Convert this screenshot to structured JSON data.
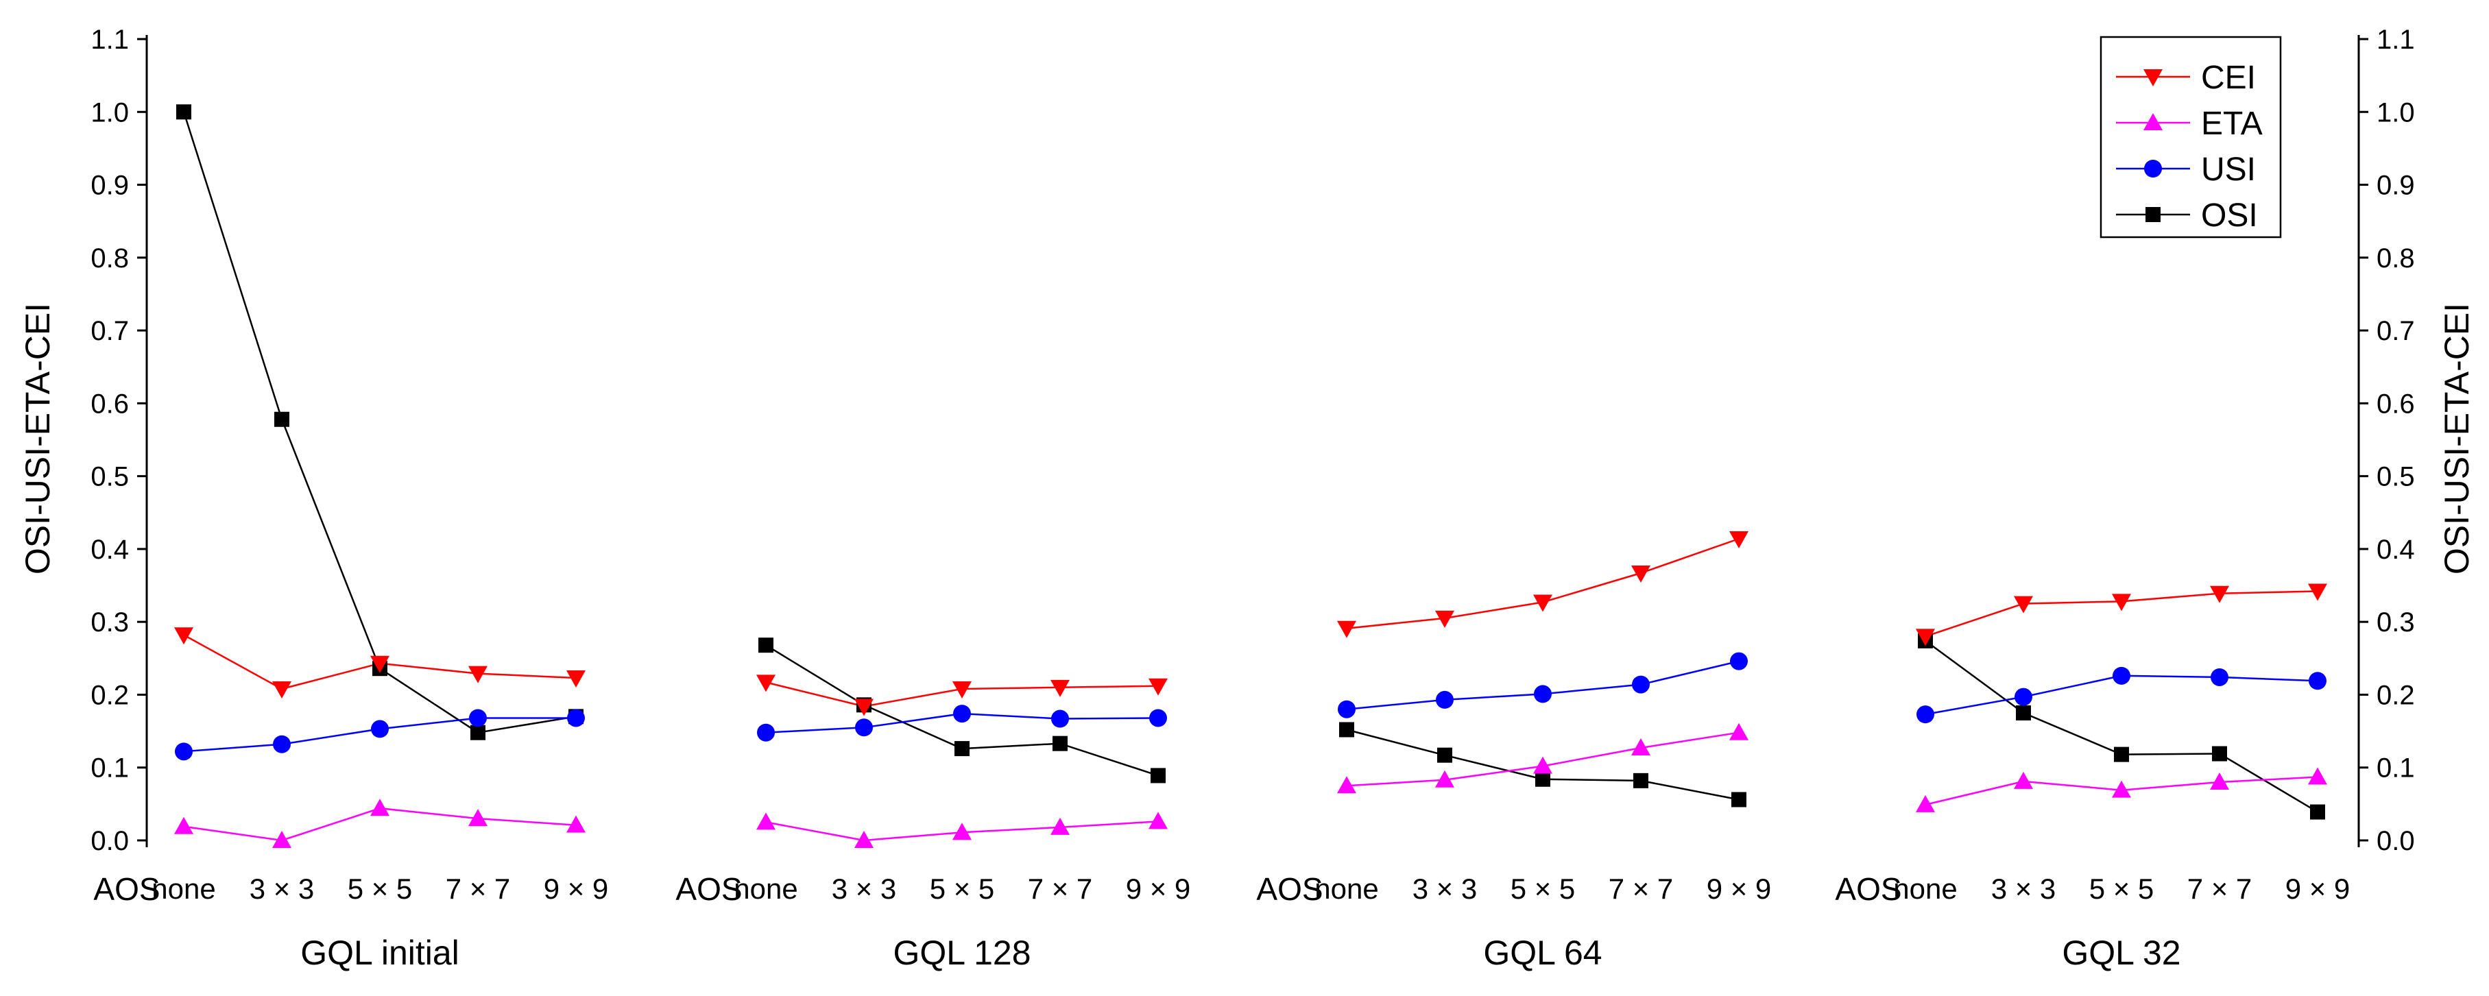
{
  "chart_data": {
    "type": "line",
    "ylabel_left": "OSI-USI-ETA-CEI",
    "ylabel_right": "OSI-USI-ETA-CEI",
    "ylim": [
      0,
      1.1
    ],
    "yticks": [
      "0.0",
      "0.1",
      "0.2",
      "0.3",
      "0.4",
      "0.5",
      "0.6",
      "0.7",
      "0.8",
      "0.9",
      "1.0",
      "1.1"
    ],
    "x_axis_label": "AOS",
    "categories": [
      "none",
      "3 × 3",
      "5 × 5",
      "7 × 7",
      "9 × 9"
    ],
    "legend": {
      "placement": "top-right",
      "entries": [
        "CEI",
        "ETA",
        "USI",
        "OSI"
      ]
    },
    "series_styles": [
      {
        "name": "CEI",
        "color": "#ff0000",
        "marker": "triangle-down"
      },
      {
        "name": "ETA",
        "color": "#ff00ff",
        "marker": "triangle-up"
      },
      {
        "name": "USI",
        "color": "#0000ff",
        "marker": "circle"
      },
      {
        "name": "OSI",
        "color": "#000000",
        "marker": "square"
      }
    ],
    "groups": [
      {
        "title": "GQL initial",
        "series": [
          {
            "name": "CEI",
            "values": [
              0.282,
              0.208,
              0.243,
              0.229,
              0.223
            ]
          },
          {
            "name": "ETA",
            "values": [
              0.019,
              0.0,
              0.044,
              0.03,
              0.021
            ]
          },
          {
            "name": "USI",
            "values": [
              0.122,
              0.132,
              0.153,
              0.168,
              0.168
            ]
          },
          {
            "name": "OSI",
            "values": [
              1.0,
              0.578,
              0.236,
              0.148,
              0.17
            ]
          }
        ]
      },
      {
        "title": "GQL 128",
        "series": [
          {
            "name": "CEI",
            "values": [
              0.217,
              0.184,
              0.208,
              0.21,
              0.212
            ]
          },
          {
            "name": "ETA",
            "values": [
              0.025,
              0.0,
              0.011,
              0.018,
              0.026
            ]
          },
          {
            "name": "USI",
            "values": [
              0.148,
              0.155,
              0.174,
              0.167,
              0.168
            ]
          },
          {
            "name": "OSI",
            "values": [
              0.268,
              0.186,
              0.126,
              0.133,
              0.089
            ]
          }
        ]
      },
      {
        "title": "GQL 64",
        "series": [
          {
            "name": "CEI",
            "values": [
              0.291,
              0.305,
              0.327,
              0.367,
              0.414
            ]
          },
          {
            "name": "ETA",
            "values": [
              0.075,
              0.083,
              0.102,
              0.127,
              0.148
            ]
          },
          {
            "name": "USI",
            "values": [
              0.18,
              0.193,
              0.201,
              0.214,
              0.246
            ]
          },
          {
            "name": "OSI",
            "values": [
              0.152,
              0.117,
              0.084,
              0.082,
              0.056
            ]
          }
        ]
      },
      {
        "title": "GQL 32",
        "series": [
          {
            "name": "CEI",
            "values": [
              0.28,
              0.325,
              0.328,
              0.339,
              0.342
            ]
          },
          {
            "name": "ETA",
            "values": [
              0.049,
              0.081,
              0.069,
              0.08,
              0.087
            ]
          },
          {
            "name": "USI",
            "values": [
              0.173,
              0.197,
              0.226,
              0.224,
              0.219
            ]
          },
          {
            "name": "OSI",
            "values": [
              0.274,
              0.175,
              0.118,
              0.119,
              0.039
            ]
          }
        ]
      }
    ]
  }
}
